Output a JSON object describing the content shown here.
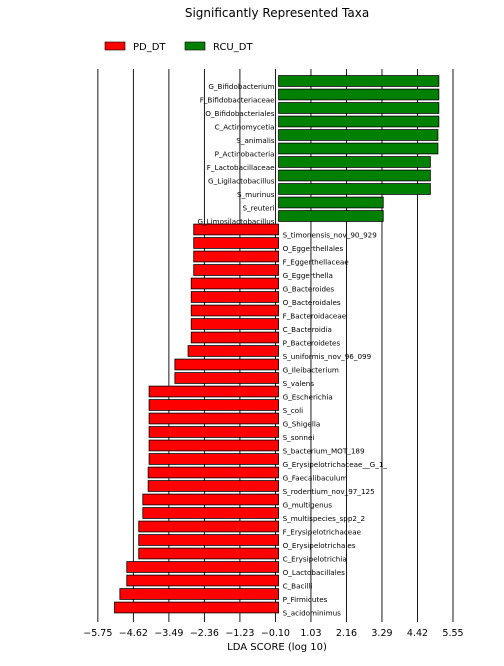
{
  "chart_data": {
    "type": "bar",
    "orientation": "horizontal",
    "title": "Significantly Represented Taxa",
    "xlabel": "LDA SCORE (log 10)",
    "ylabel": "",
    "xlim": [
      -6.0,
      5.9
    ],
    "xticks": [
      -5.75,
      -4.62,
      -3.49,
      -2.36,
      -1.23,
      -0.1,
      1.03,
      2.16,
      3.29,
      4.42,
      5.55
    ],
    "xtick_labels": [
      "−5.75",
      "−4.62",
      "−3.49",
      "−2.36",
      "−1.23",
      "−0.10",
      "1.03",
      "2.16",
      "3.29",
      "4.42",
      "5.55"
    ],
    "grid": "vertical",
    "legend_position": "top-left",
    "series": [
      {
        "name": "PD_DT",
        "color": "#ff0000"
      },
      {
        "name": "RCU_DT",
        "color": "#008000"
      }
    ],
    "bars": [
      {
        "label": "G_Bifidobacterium",
        "value": 5.1,
        "series": "RCU_DT"
      },
      {
        "label": "F_Bifidobacteriaceae",
        "value": 5.1,
        "series": "RCU_DT"
      },
      {
        "label": "O_Bifidobacteriales",
        "value": 5.1,
        "series": "RCU_DT"
      },
      {
        "label": "C_Actinomycetia",
        "value": 5.1,
        "series": "RCU_DT"
      },
      {
        "label": "S_animalis",
        "value": 5.07,
        "series": "RCU_DT"
      },
      {
        "label": "P_Actinobacteria",
        "value": 5.07,
        "series": "RCU_DT"
      },
      {
        "label": "F_Lactobacillaceae",
        "value": 4.83,
        "series": "RCU_DT"
      },
      {
        "label": "G_Ligilactobacillus",
        "value": 4.83,
        "series": "RCU_DT"
      },
      {
        "label": "S_murinus",
        "value": 4.83,
        "series": "RCU_DT"
      },
      {
        "label": "S_reuteri",
        "value": 3.33,
        "series": "RCU_DT"
      },
      {
        "label": "G_Limosilactobacillus",
        "value": 3.33,
        "series": "RCU_DT"
      },
      {
        "label": "S_timonensis_nov_90_929",
        "value": -2.7,
        "series": "PD_DT"
      },
      {
        "label": "O_Eggerthellales",
        "value": -2.7,
        "series": "PD_DT"
      },
      {
        "label": "F_Eggerthellaceae",
        "value": -2.7,
        "series": "PD_DT"
      },
      {
        "label": "G_Eggerthella",
        "value": -2.7,
        "series": "PD_DT"
      },
      {
        "label": "G_Bacteroides",
        "value": -2.78,
        "series": "PD_DT"
      },
      {
        "label": "O_Bacteroidales",
        "value": -2.78,
        "series": "PD_DT"
      },
      {
        "label": "F_Bacteroidaceae",
        "value": -2.78,
        "series": "PD_DT"
      },
      {
        "label": "C_Bacteroidia",
        "value": -2.78,
        "series": "PD_DT"
      },
      {
        "label": "P_Bacteroidetes",
        "value": -2.78,
        "series": "PD_DT"
      },
      {
        "label": "S_uniformis_nov_96_099",
        "value": -2.88,
        "series": "PD_DT"
      },
      {
        "label": "G_Ileibacterium",
        "value": -3.3,
        "series": "PD_DT"
      },
      {
        "label": "S_valens",
        "value": -3.3,
        "series": "PD_DT"
      },
      {
        "label": "G_Escherichia",
        "value": -4.12,
        "series": "PD_DT"
      },
      {
        "label": "S_coli",
        "value": -4.12,
        "series": "PD_DT"
      },
      {
        "label": "G_Shigella",
        "value": -4.12,
        "series": "PD_DT"
      },
      {
        "label": "S_sonnei",
        "value": -4.12,
        "series": "PD_DT"
      },
      {
        "label": "S_bacterium_MOT_189",
        "value": -4.12,
        "series": "PD_DT"
      },
      {
        "label": "G_Erysipelotrichaceae__G_1_",
        "value": -4.12,
        "series": "PD_DT"
      },
      {
        "label": "G_Faecalibaculum",
        "value": -4.15,
        "series": "PD_DT"
      },
      {
        "label": "S_rodentium_nov_97_125",
        "value": -4.15,
        "series": "PD_DT"
      },
      {
        "label": "G_multigenus",
        "value": -4.32,
        "series": "PD_DT"
      },
      {
        "label": "S_multispecies_spp2_2",
        "value": -4.32,
        "series": "PD_DT"
      },
      {
        "label": "F_Erysipelotrichaceae",
        "value": -4.45,
        "series": "PD_DT"
      },
      {
        "label": "O_Erysipelotrichales",
        "value": -4.45,
        "series": "PD_DT"
      },
      {
        "label": "C_Erysipelotrichia",
        "value": -4.45,
        "series": "PD_DT"
      },
      {
        "label": "O_Lactobacillales",
        "value": -4.83,
        "series": "PD_DT"
      },
      {
        "label": "C_Bacilli",
        "value": -4.83,
        "series": "PD_DT"
      },
      {
        "label": "P_Firmicutes",
        "value": -5.05,
        "series": "PD_DT"
      },
      {
        "label": "S_acidominimus",
        "value": -5.22,
        "series": "PD_DT"
      }
    ]
  }
}
